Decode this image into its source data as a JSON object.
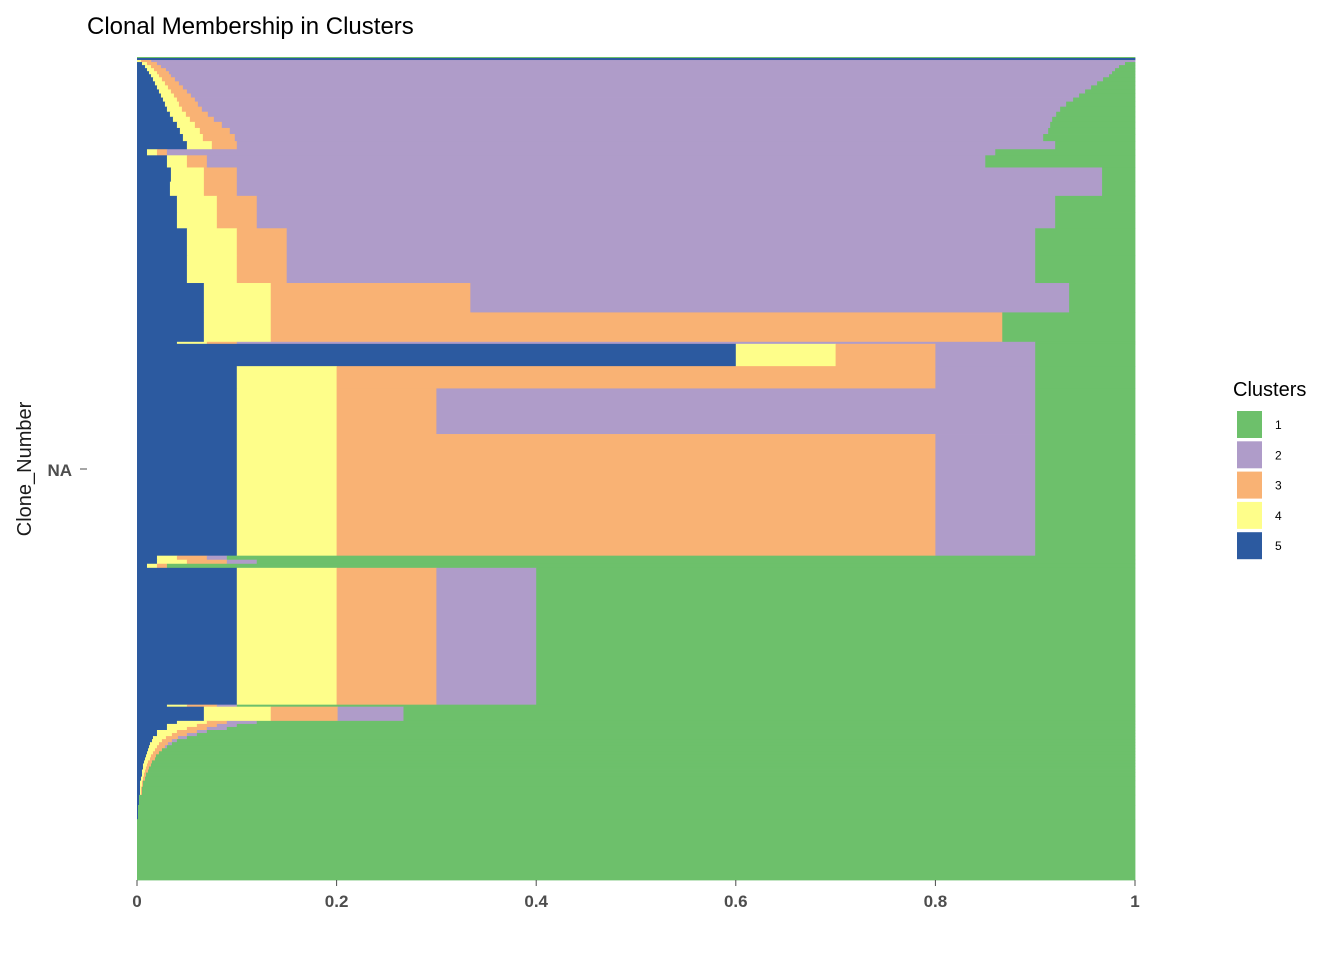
{
  "chart_data": {
    "type": "bar",
    "orientation": "horizontal",
    "stacked": "fill",
    "title": "Clonal Membership in Clusters",
    "xlabel": "",
    "ylabel": "Clone_Number",
    "y_tick_labels": [
      "NA"
    ],
    "x_ticks": [
      "0",
      "0.2",
      "0.4",
      "0.6",
      "0.8",
      "1"
    ],
    "xlim": [
      0,
      1
    ],
    "grid": false,
    "legend": {
      "title": "Clusters",
      "placement": "right",
      "entries": [
        {
          "label": "1",
          "color": "#6DC06B"
        },
        {
          "label": "2",
          "color": "#AF9CC9"
        },
        {
          "label": "3",
          "color": "#F9B274"
        },
        {
          "label": "4",
          "color": "#FEFE8A"
        },
        {
          "label": "5",
          "color": "#2C5AA0"
        }
      ]
    },
    "stack_order": [
      "5",
      "4",
      "3",
      "2",
      "1"
    ],
    "bands": [
      {
        "weight": 1,
        "segments": [
          0.0,
          0.0,
          0.0,
          0.0,
          1.0
        ]
      },
      {
        "weight": 2,
        "segments": [
          0.07,
          0.0,
          0.0,
          0.0,
          0.0
        ]
      },
      {
        "weight": 2,
        "segments": [
          0.0,
          0.004,
          0.01,
          0.97,
          0.0
        ]
      },
      {
        "weight": 3,
        "segments": [
          0.005,
          0.005,
          0.01,
          0.97,
          0.01
        ]
      },
      {
        "weight": 3,
        "segments": [
          0.008,
          0.006,
          0.01,
          0.96,
          0.016
        ]
      },
      {
        "weight": 3,
        "segments": [
          0.01,
          0.007,
          0.012,
          0.95,
          0.02
        ]
      },
      {
        "weight": 3,
        "segments": [
          0.012,
          0.008,
          0.012,
          0.945,
          0.023
        ]
      },
      {
        "weight": 3,
        "segments": [
          0.014,
          0.008,
          0.012,
          0.94,
          0.026
        ]
      },
      {
        "weight": 4,
        "segments": [
          0.016,
          0.009,
          0.013,
          0.93,
          0.032
        ]
      },
      {
        "weight": 4,
        "segments": [
          0.018,
          0.01,
          0.014,
          0.92,
          0.038
        ]
      },
      {
        "weight": 4,
        "segments": [
          0.02,
          0.011,
          0.015,
          0.91,
          0.044
        ]
      },
      {
        "weight": 4,
        "segments": [
          0.022,
          0.012,
          0.016,
          0.9,
          0.05
        ]
      },
      {
        "weight": 4,
        "segments": [
          0.024,
          0.013,
          0.017,
          0.89,
          0.056
        ]
      },
      {
        "weight": 4,
        "segments": [
          0.026,
          0.014,
          0.018,
          0.88,
          0.062
        ]
      },
      {
        "weight": 5,
        "segments": [
          0.028,
          0.014,
          0.019,
          0.87,
          0.069
        ]
      },
      {
        "weight": 5,
        "segments": [
          0.03,
          0.015,
          0.02,
          0.86,
          0.075
        ]
      },
      {
        "weight": 5,
        "segments": [
          0.033,
          0.016,
          0.022,
          0.85,
          0.079
        ]
      },
      {
        "weight": 5,
        "segments": [
          0.036,
          0.017,
          0.024,
          0.84,
          0.083
        ]
      },
      {
        "weight": 6,
        "segments": [
          0.04,
          0.018,
          0.027,
          0.83,
          0.085
        ]
      },
      {
        "weight": 6,
        "segments": [
          0.043,
          0.02,
          0.03,
          0.82,
          0.087
        ]
      },
      {
        "weight": 7,
        "segments": [
          0.046,
          0.02,
          0.032,
          0.81,
          0.092
        ]
      },
      {
        "weight": 8,
        "segments": [
          0.05,
          0.025,
          0.025,
          0.82,
          0.08
        ]
      },
      {
        "weight": 6,
        "segments": [
          0.01,
          0.01,
          0.01,
          0.83,
          0.14
        ]
      },
      {
        "weight": 12,
        "segments": [
          0.03,
          0.02,
          0.02,
          0.78,
          0.15
        ]
      },
      {
        "weight": 14,
        "segments": [
          0.034,
          0.033,
          0.033,
          0.867,
          0.033
        ]
      },
      {
        "weight": 14,
        "segments": [
          0.033,
          0.034,
          0.033,
          0.867,
          0.033
        ]
      },
      {
        "weight": 16,
        "segments": [
          0.04,
          0.04,
          0.04,
          0.8,
          0.08
        ]
      },
      {
        "weight": 16,
        "segments": [
          0.04,
          0.04,
          0.04,
          0.8,
          0.08
        ]
      },
      {
        "weight": 27,
        "segments": [
          0.05,
          0.05,
          0.05,
          0.75,
          0.1
        ]
      },
      {
        "weight": 27,
        "segments": [
          0.05,
          0.05,
          0.05,
          0.75,
          0.1
        ]
      },
      {
        "weight": 29,
        "segments": [
          0.067,
          0.067,
          0.2,
          0.6,
          0.066
        ]
      },
      {
        "weight": 29,
        "segments": [
          0.067,
          0.067,
          0.733,
          0.0,
          0.133
        ]
      },
      {
        "weight": 2,
        "segments": [
          0.04,
          0.03,
          0.03,
          0.8,
          0.1
        ]
      },
      {
        "weight": 22,
        "segments": [
          0.6,
          0.1,
          0.1,
          0.1,
          0.1
        ]
      },
      {
        "weight": 22,
        "segments": [
          0.1,
          0.1,
          0.6,
          0.1,
          0.1
        ]
      },
      {
        "weight": 45,
        "segments": [
          0.1,
          0.1,
          0.1,
          0.6,
          0.1
        ]
      },
      {
        "weight": 120,
        "segments": [
          0.1,
          0.1,
          0.6,
          0.1,
          0.1
        ]
      },
      {
        "weight": 4,
        "segments": [
          0.02,
          0.02,
          0.03,
          0.02,
          0.91
        ]
      },
      {
        "weight": 4,
        "segments": [
          0.02,
          0.03,
          0.04,
          0.03,
          0.88
        ]
      },
      {
        "weight": 4,
        "segments": [
          0.01,
          0.01,
          0.01,
          0.0,
          0.97
        ]
      },
      {
        "weight": 135,
        "segments": [
          0.1,
          0.1,
          0.1,
          0.1,
          0.6
        ]
      },
      {
        "weight": 2,
        "segments": [
          0.03,
          0.02,
          0.03,
          0.02,
          0.9
        ]
      },
      {
        "weight": 14,
        "segments": [
          0.067,
          0.067,
          0.067,
          0.066,
          0.733
        ]
      },
      {
        "weight": 3,
        "segments": [
          0.04,
          0.03,
          0.02,
          0.03,
          0.88
        ]
      },
      {
        "weight": 3,
        "segments": [
          0.03,
          0.03,
          0.02,
          0.02,
          0.9
        ]
      },
      {
        "weight": 3,
        "segments": [
          0.03,
          0.02,
          0.02,
          0.02,
          0.91
        ]
      },
      {
        "weight": 3,
        "segments": [
          0.02,
          0.02,
          0.02,
          0.01,
          0.93
        ]
      },
      {
        "weight": 3,
        "segments": [
          0.02,
          0.015,
          0.015,
          0.01,
          0.94
        ]
      },
      {
        "weight": 3,
        "segments": [
          0.016,
          0.013,
          0.012,
          0.009,
          0.95
        ]
      },
      {
        "weight": 3,
        "segments": [
          0.015,
          0.01,
          0.01,
          0.005,
          0.96
        ]
      },
      {
        "weight": 3,
        "segments": [
          0.013,
          0.009,
          0.009,
          0.004,
          0.965
        ]
      },
      {
        "weight": 3,
        "segments": [
          0.012,
          0.008,
          0.008,
          0.002,
          0.97
        ]
      },
      {
        "weight": 3,
        "segments": [
          0.011,
          0.007,
          0.007,
          0.0,
          0.975
        ]
      },
      {
        "weight": 3,
        "segments": [
          0.01,
          0.006,
          0.006,
          0.0,
          0.978
        ]
      },
      {
        "weight": 3,
        "segments": [
          0.009,
          0.005,
          0.005,
          0.0,
          0.981
        ]
      },
      {
        "weight": 3,
        "segments": [
          0.008,
          0.005,
          0.005,
          0.0,
          0.982
        ]
      },
      {
        "weight": 3,
        "segments": [
          0.007,
          0.004,
          0.004,
          0.0,
          0.985
        ]
      },
      {
        "weight": 3,
        "segments": [
          0.006,
          0.004,
          0.004,
          0.0,
          0.986
        ]
      },
      {
        "weight": 3,
        "segments": [
          0.006,
          0.003,
          0.003,
          0.0,
          0.988
        ]
      },
      {
        "weight": 3,
        "segments": [
          0.005,
          0.003,
          0.003,
          0.0,
          0.989
        ]
      },
      {
        "weight": 4,
        "segments": [
          0.005,
          0.002,
          0.002,
          0.0,
          0.991
        ]
      },
      {
        "weight": 4,
        "segments": [
          0.004,
          0.002,
          0.002,
          0.0,
          0.992
        ]
      },
      {
        "weight": 6,
        "segments": [
          0.003,
          0.002,
          0.001,
          0.0,
          0.994
        ]
      },
      {
        "weight": 8,
        "segments": [
          0.003,
          0.001,
          0.001,
          0.0,
          0.995
        ]
      },
      {
        "weight": 10,
        "segments": [
          0.002,
          0.0,
          0.0,
          0.0,
          0.998
        ]
      },
      {
        "weight": 14,
        "segments": [
          0.001,
          0.0,
          0.0,
          0.0,
          0.999
        ]
      },
      {
        "weight": 60,
        "segments": [
          0.0,
          0.0,
          0.0,
          0.0,
          1.0
        ]
      }
    ]
  }
}
